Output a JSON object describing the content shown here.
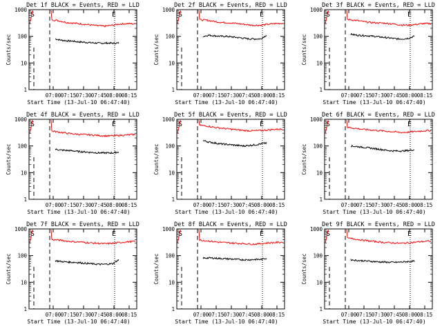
{
  "common": {
    "ylabel": "Counts/sec",
    "xlabel": "Start Time (13-Jul-10 06:47:40)",
    "xticks": [
      "07:00",
      "07:15",
      "07:30",
      "07:45",
      "08:00",
      "08:15"
    ],
    "yticks": [
      "1",
      "10",
      "100",
      "1000"
    ],
    "marker_S": "S",
    "marker_E": "E",
    "colors": {
      "events": "#000000",
      "lld": "#ff0000",
      "axis": "#000000"
    }
  },
  "chart_data": [
    {
      "type": "line",
      "title": "Det 1f BLACK = Events, RED = LLD",
      "ylog": true,
      "ylim": [
        1,
        1000
      ],
      "series": [
        {
          "key": "events",
          "color": "#000000",
          "values": [
            80,
            72,
            68,
            66,
            62,
            60,
            58,
            56,
            55,
            56,
            55,
            56
          ]
        },
        {
          "key": "lld",
          "color": "#ff0000",
          "values": [
            420,
            380,
            330,
            310,
            290,
            270,
            250,
            240,
            260,
            290,
            300,
            290
          ]
        }
      ]
    },
    {
      "type": "line",
      "title": "Det 2f BLACK = Events, RED = LLD",
      "ylog": true,
      "ylim": [
        1,
        1000
      ],
      "series": [
        {
          "key": "events",
          "color": "#000000",
          "values": [
            100,
            110,
            105,
            100,
            100,
            95,
            90,
            85,
            80,
            80,
            80,
            110
          ]
        },
        {
          "key": "lld",
          "color": "#ff0000",
          "values": [
            420,
            400,
            360,
            330,
            320,
            300,
            280,
            260,
            260,
            280,
            300,
            310
          ]
        }
      ]
    },
    {
      "type": "line",
      "title": "Det 3f BLACK = Events, RED = LLD",
      "ylog": true,
      "ylim": [
        1,
        1000
      ],
      "series": [
        {
          "key": "events",
          "color": "#000000",
          "values": [
            120,
            110,
            108,
            105,
            100,
            95,
            90,
            85,
            80,
            80,
            85,
            100
          ]
        },
        {
          "key": "lld",
          "color": "#ff0000",
          "values": [
            430,
            400,
            360,
            330,
            320,
            310,
            290,
            270,
            260,
            280,
            300,
            300
          ]
        }
      ]
    },
    {
      "type": "line",
      "title": "Det 4f BLACK = Events, RED = LLD",
      "ylog": true,
      "ylim": [
        1,
        1000
      ],
      "series": [
        {
          "key": "events",
          "color": "#000000",
          "values": [
            75,
            70,
            68,
            66,
            62,
            60,
            58,
            56,
            55,
            55,
            55,
            60
          ]
        },
        {
          "key": "lld",
          "color": "#ff0000",
          "values": [
            360,
            330,
            300,
            280,
            270,
            260,
            250,
            240,
            240,
            250,
            260,
            270
          ]
        }
      ]
    },
    {
      "type": "line",
      "title": "Det 5f BLACK = Events, RED = LLD",
      "ylog": true,
      "ylim": [
        1,
        1000
      ],
      "series": [
        {
          "key": "events",
          "color": "#000000",
          "values": [
            160,
            140,
            130,
            120,
            115,
            110,
            105,
            100,
            105,
            110,
            120,
            130
          ]
        },
        {
          "key": "lld",
          "color": "#ff0000",
          "values": [
            600,
            560,
            500,
            460,
            430,
            400,
            380,
            370,
            380,
            400,
            420,
            430
          ]
        }
      ]
    },
    {
      "type": "line",
      "title": "Det 6f BLACK = Events, RED = LLD",
      "ylog": true,
      "ylim": [
        1,
        1000
      ],
      "series": [
        {
          "key": "events",
          "color": "#000000",
          "values": [
            100,
            95,
            90,
            85,
            80,
            75,
            70,
            66,
            65,
            65,
            68,
            72
          ]
        },
        {
          "key": "lld",
          "color": "#ff0000",
          "values": [
            500,
            460,
            420,
            400,
            380,
            360,
            340,
            320,
            330,
            350,
            370,
            380
          ]
        }
      ]
    },
    {
      "type": "line",
      "title": "Det 7f BLACK = Events, RED = LLD",
      "ylog": true,
      "ylim": [
        1,
        1000
      ],
      "series": [
        {
          "key": "events",
          "color": "#000000",
          "values": [
            65,
            60,
            58,
            56,
            55,
            52,
            50,
            48,
            47,
            48,
            50,
            70
          ]
        },
        {
          "key": "lld",
          "color": "#ff0000",
          "values": [
            400,
            380,
            350,
            330,
            320,
            300,
            290,
            280,
            290,
            310,
            330,
            340
          ]
        }
      ]
    },
    {
      "type": "line",
      "title": "Det 8f BLACK = Events, RED = LLD",
      "ylog": true,
      "ylim": [
        1,
        1000
      ],
      "series": [
        {
          "key": "events",
          "color": "#000000",
          "values": [
            80,
            82,
            80,
            78,
            76,
            74,
            72,
            70,
            70,
            72,
            72,
            80
          ]
        },
        {
          "key": "lld",
          "color": "#ff0000",
          "values": [
            380,
            360,
            330,
            310,
            300,
            290,
            280,
            270,
            280,
            300,
            310,
            320
          ]
        }
      ]
    },
    {
      "type": "line",
      "title": "Det 9f BLACK = Events, RED = LLD",
      "ylog": true,
      "ylim": [
        1,
        1000
      ],
      "series": [
        {
          "key": "events",
          "color": "#000000",
          "values": [
            70,
            66,
            64,
            62,
            60,
            58,
            57,
            56,
            56,
            58,
            60,
            62
          ]
        },
        {
          "key": "lld",
          "color": "#ff0000",
          "values": [
            450,
            420,
            380,
            350,
            330,
            310,
            300,
            290,
            300,
            320,
            340,
            350
          ]
        }
      ]
    }
  ]
}
